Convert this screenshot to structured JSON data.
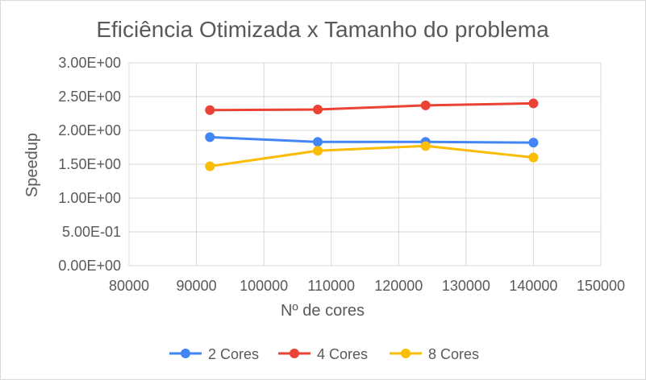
{
  "chart_data": {
    "type": "scatter",
    "title": "Eficiência Otimizada x Tamanho do problema",
    "xlabel": "Nº de cores",
    "ylabel": "Speedup",
    "xlim": [
      80000,
      150000
    ],
    "ylim": [
      0,
      3
    ],
    "x_ticks": [
      "80000",
      "90000",
      "100000",
      "110000",
      "120000",
      "130000",
      "140000",
      "150000"
    ],
    "y_ticks": [
      "0.00E+00",
      "5.00E-01",
      "1.00E+00",
      "1.50E+00",
      "2.00E+00",
      "2.50E+00",
      "3.00E+00"
    ],
    "grid": true,
    "legend_position": "bottom",
    "series": [
      {
        "name": "2 Cores",
        "color": "#4285f4",
        "x": [
          92000,
          108000,
          124000,
          140000
        ],
        "y": [
          1.9,
          1.83,
          1.83,
          1.82
        ]
      },
      {
        "name": "4 Cores",
        "color": "#ea4335",
        "x": [
          92000,
          108000,
          124000,
          140000
        ],
        "y": [
          2.3,
          2.31,
          2.37,
          2.4
        ]
      },
      {
        "name": "8 Cores",
        "color": "#fbbc04",
        "x": [
          92000,
          108000,
          124000,
          140000
        ],
        "y": [
          1.47,
          1.7,
          1.77,
          1.6
        ]
      }
    ]
  }
}
